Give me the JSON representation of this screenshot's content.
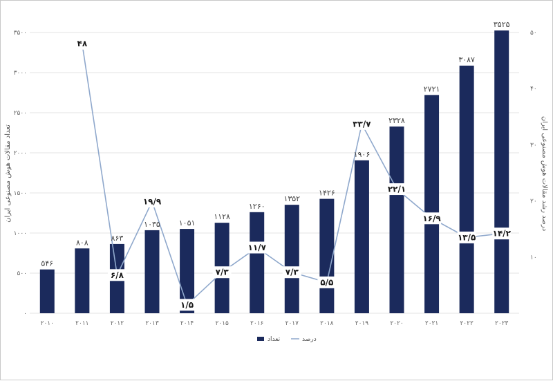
{
  "chart_data": {
    "type": "bar",
    "categories": [
      "۲۰۱۰",
      "۲۰۱۱",
      "۲۰۱۲",
      "۲۰۱۳",
      "۲۰۱۴",
      "۲۰۱۵",
      "۲۰۱۶",
      "۲۰۱۷",
      "۲۰۱۸",
      "۲۰۱۹",
      "۲۰۲۰",
      "۲۰۲۱",
      "۲۰۲۲",
      "۲۰۲۳"
    ],
    "series": [
      {
        "name": "تعداد",
        "type": "bar",
        "axis": "left",
        "color": "#1b2a5c",
        "values": [
          546,
          808,
          863,
          1035,
          1051,
          1128,
          1260,
          1352,
          1426,
          1906,
          2328,
          2721,
          3087,
          3525
        ],
        "labels": [
          "۵۴۶",
          "۸۰۸",
          "۸۶۳",
          "۱۰۳۵",
          "۱۰۵۱",
          "۱۱۲۸",
          "۱۲۶۰",
          "۱۳۵۲",
          "۱۴۲۶",
          "۱۹۰۶",
          "۲۳۲۸",
          "۲۷۲۱",
          "۳۰۸۷",
          "۳۵۲۵"
        ]
      },
      {
        "name": "درصد",
        "type": "line",
        "axis": "right",
        "color": "#8fa8cc",
        "values": [
          null,
          48,
          6.8,
          19.9,
          1.5,
          7.3,
          11.7,
          7.3,
          5.5,
          33.7,
          22.1,
          16.9,
          13.5,
          14.2
        ],
        "labels": [
          "",
          "۴۸",
          "۶/۸",
          "۱۹/۹",
          "۱/۵",
          "۷/۳",
          "۱۱/۷",
          "۷/۳",
          "۵/۵",
          "۳۳/۷",
          "۲۲/۱",
          "۱۶/۹",
          "۱۳/۵",
          "۱۴/۲"
        ]
      }
    ],
    "ylabel": "تعداد مقالات هوش مصنوعی ایران",
    "y2label": "درصد رشد مقالات هوش مصنوعی ایران",
    "ylim": [
      0,
      3500
    ],
    "y2lim": [
      0,
      50
    ],
    "yticks": [
      0,
      500,
      1000,
      1500,
      2000,
      2500,
      3000,
      3500
    ],
    "ytick_labels": [
      "۰",
      "۵۰۰",
      "۱۰۰۰",
      "۱۵۰۰",
      "۲۰۰۰",
      "۲۵۰۰",
      "۳۰۰۰",
      "۳۵۰۰"
    ],
    "y2ticks": [
      10,
      20,
      30,
      40,
      50
    ],
    "y2tick_labels": [
      "۱۰",
      "۲۰",
      "۳۰",
      "۴۰",
      "۵۰"
    ],
    "grid": true,
    "legend": "bottom-center"
  }
}
